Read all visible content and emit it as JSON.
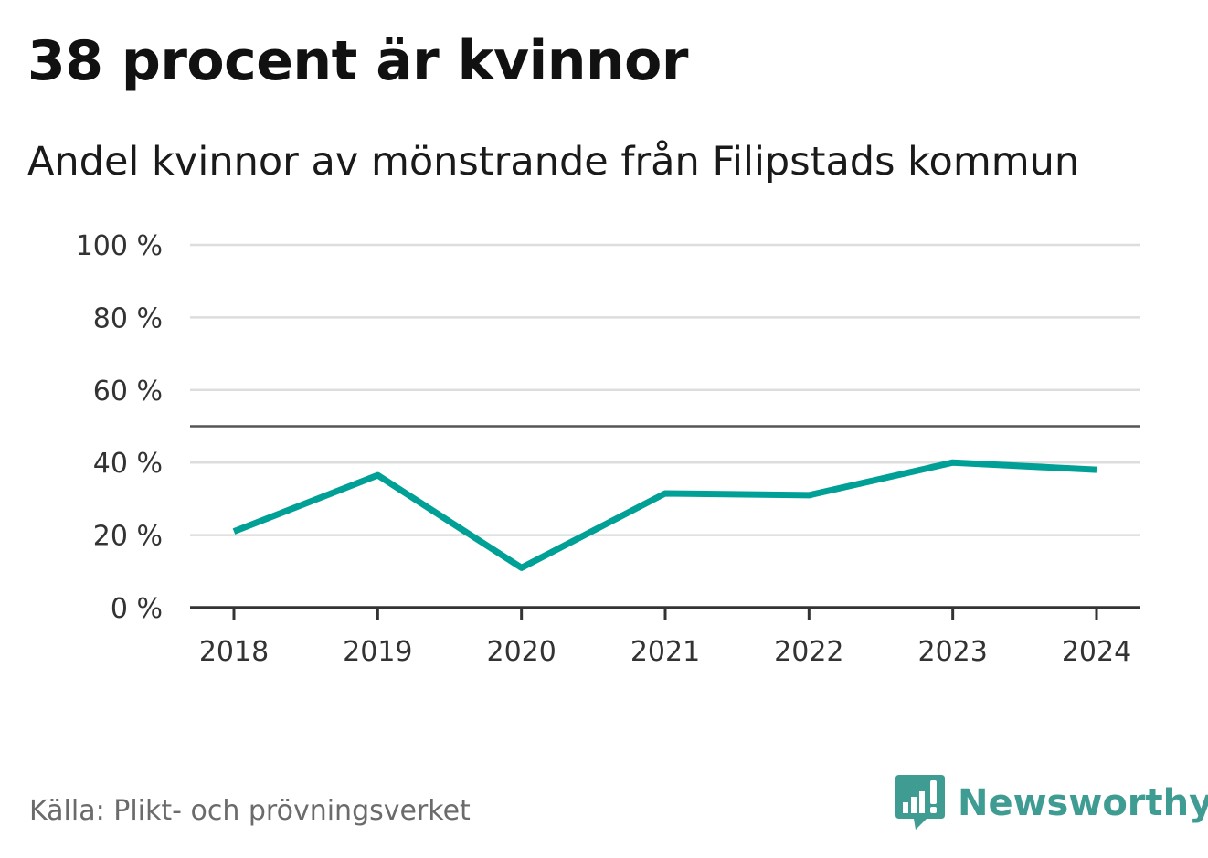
{
  "chart_data": {
    "type": "line",
    "title": "38 procent är kvinnor",
    "subtitle": "Andel kvinnor av mönstrande från Filipstads kommun",
    "categories": [
      "2018",
      "2019",
      "2020",
      "2021",
      "2022",
      "2023",
      "2024"
    ],
    "series": [
      {
        "name": "Andel kvinnor",
        "values": [
          21,
          36.5,
          11,
          31.5,
          31,
          40,
          38
        ],
        "color": "#00a096"
      }
    ],
    "yticks": [
      "0 %",
      "20 %",
      "40 %",
      "60 %",
      "80 %",
      "100 %"
    ],
    "ytick_values": [
      0,
      20,
      40,
      60,
      80,
      100
    ],
    "ylim": [
      0,
      100
    ],
    "reference_line": 50,
    "xlabel": "",
    "ylabel": "",
    "grid": true
  },
  "source": "Källa: Plikt- och prövningsverket",
  "brand": {
    "name": "Newsworthy",
    "color": "#3f9c92"
  },
  "colors": {
    "gridline": "#dddddd",
    "axis": "#333333",
    "reference": "#555555"
  }
}
